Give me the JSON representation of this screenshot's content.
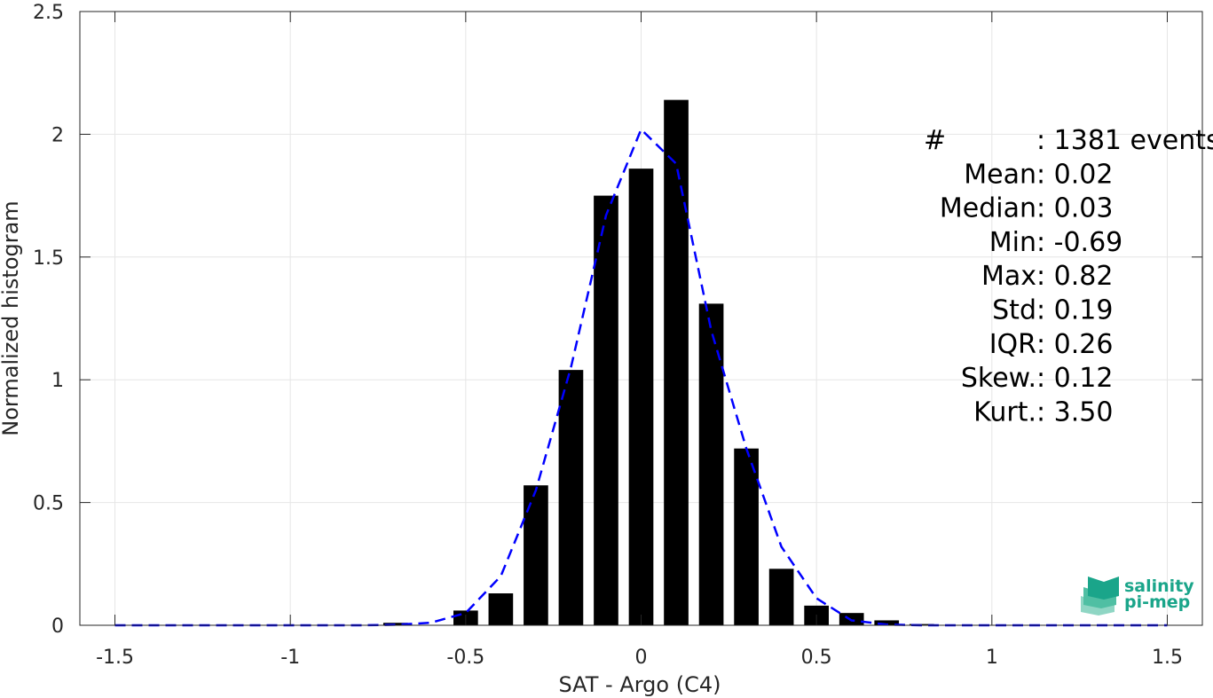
{
  "chart_data": {
    "type": "bar",
    "xlabel": "SAT - Argo (C4)",
    "ylabel": "Normalized histogram",
    "xlim": [
      -1.6,
      1.6
    ],
    "ylim": [
      0,
      2.5
    ],
    "xticks": [
      -1.5,
      -1,
      -0.5,
      0,
      0.5,
      1,
      1.5
    ],
    "xtick_labels": [
      "-1.5",
      "-1",
      "-0.5",
      "0",
      "0.5",
      "1",
      "1.5"
    ],
    "yticks": [
      0,
      0.5,
      1,
      1.5,
      2,
      2.5
    ],
    "ytick_labels": [
      "0",
      "0.5",
      "1",
      "1.5",
      "2",
      "2.5"
    ],
    "grid": true,
    "bar_width": 0.07,
    "bar_color": "#000000",
    "bars": [
      {
        "x": -0.7,
        "y": 0.01
      },
      {
        "x": -0.5,
        "y": 0.06
      },
      {
        "x": -0.4,
        "y": 0.13
      },
      {
        "x": -0.3,
        "y": 0.57
      },
      {
        "x": -0.2,
        "y": 1.04
      },
      {
        "x": -0.1,
        "y": 1.75
      },
      {
        "x": 0.0,
        "y": 1.86
      },
      {
        "x": 0.1,
        "y": 2.14
      },
      {
        "x": 0.2,
        "y": 1.31
      },
      {
        "x": 0.3,
        "y": 0.72
      },
      {
        "x": 0.4,
        "y": 0.23
      },
      {
        "x": 0.5,
        "y": 0.08
      },
      {
        "x": 0.6,
        "y": 0.05
      },
      {
        "x": 0.7,
        "y": 0.02
      },
      {
        "x": 0.8,
        "y": 0.005
      }
    ],
    "fit_curve": {
      "style": "dashed",
      "color": "#0000ff",
      "x": [
        -1.5,
        -1.4,
        -1.3,
        -1.2,
        -1.1,
        -1.0,
        -0.9,
        -0.8,
        -0.7,
        -0.6,
        -0.5,
        -0.4,
        -0.3,
        -0.2,
        -0.1,
        0.0,
        0.1,
        0.2,
        0.3,
        0.4,
        0.5,
        0.6,
        0.7,
        0.8,
        0.9,
        1.0,
        1.1,
        1.2,
        1.3,
        1.4,
        1.5
      ],
      "y": [
        0,
        0,
        0,
        0,
        0,
        0,
        0,
        0,
        0.002,
        0.01,
        0.05,
        0.2,
        0.55,
        1.05,
        1.67,
        2.02,
        1.88,
        1.2,
        0.72,
        0.32,
        0.11,
        0.02,
        0.003,
        0,
        0,
        0,
        0,
        0,
        0,
        0,
        0
      ]
    },
    "stats": [
      {
        "label": "#",
        "sep": " : ",
        "value": "1381 events",
        "gap": true
      },
      {
        "label": "Mean",
        "sep": " : ",
        "value": "0.02"
      },
      {
        "label": "Median",
        "sep": " : ",
        "value": "0.03"
      },
      {
        "label": "Min",
        "sep": " : ",
        "value": "-0.69"
      },
      {
        "label": "Max",
        "sep": " : ",
        "value": "0.82"
      },
      {
        "label": "Std",
        "sep": " : ",
        "value": "0.19"
      },
      {
        "label": "IQR",
        "sep": " : ",
        "value": "0.26"
      },
      {
        "label": "Skew.",
        "sep": " : ",
        "value": "0.12"
      },
      {
        "label": "Kurt.",
        "sep": " : ",
        "value": "3.50"
      }
    ]
  },
  "logo": {
    "line1": "salinity",
    "line2": "pi-mep",
    "color": "#1aa58a"
  }
}
